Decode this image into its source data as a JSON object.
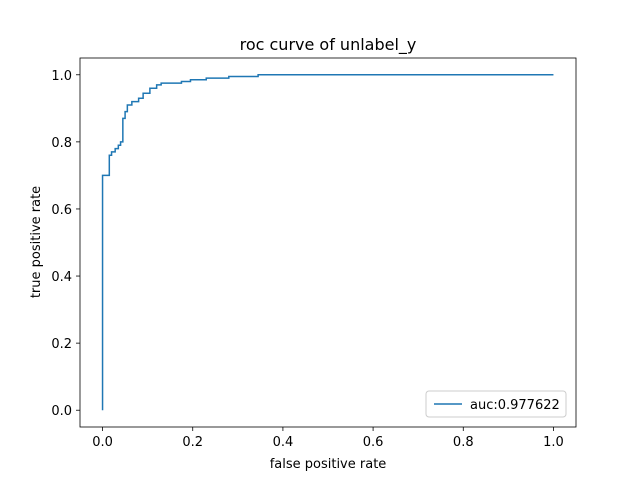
{
  "chart_data": {
    "type": "line",
    "title": "roc curve of unlabel_y",
    "xlabel": "false positive rate",
    "ylabel": "true positive rate",
    "xlim": [
      -0.05,
      1.05
    ],
    "ylim": [
      -0.05,
      1.05
    ],
    "xticks": [
      "0.0",
      "0.2",
      "0.4",
      "0.6",
      "0.8",
      "1.0"
    ],
    "yticks": [
      "0.0",
      "0.2",
      "0.4",
      "0.6",
      "0.8",
      "1.0"
    ],
    "grid": false,
    "legend_position": "lower-right",
    "series": [
      {
        "name": "auc:0.977622",
        "color": "#1f77b4",
        "step": true,
        "x": [
          0.0,
          0.0,
          0.015,
          0.015,
          0.02,
          0.02,
          0.028,
          0.028,
          0.035,
          0.035,
          0.04,
          0.04,
          0.045,
          0.045,
          0.05,
          0.05,
          0.055,
          0.055,
          0.065,
          0.065,
          0.08,
          0.08,
          0.09,
          0.09,
          0.105,
          0.105,
          0.12,
          0.12,
          0.13,
          0.13,
          0.175,
          0.175,
          0.195,
          0.195,
          0.23,
          0.23,
          0.28,
          0.28,
          0.345,
          0.345,
          1.0
        ],
        "y": [
          0.0,
          0.7,
          0.7,
          0.76,
          0.76,
          0.77,
          0.77,
          0.78,
          0.78,
          0.79,
          0.79,
          0.8,
          0.8,
          0.87,
          0.87,
          0.89,
          0.89,
          0.91,
          0.91,
          0.92,
          0.92,
          0.93,
          0.93,
          0.945,
          0.945,
          0.96,
          0.96,
          0.97,
          0.97,
          0.975,
          0.975,
          0.98,
          0.98,
          0.985,
          0.985,
          0.99,
          0.99,
          0.995,
          0.995,
          1.0,
          1.0
        ]
      }
    ]
  }
}
